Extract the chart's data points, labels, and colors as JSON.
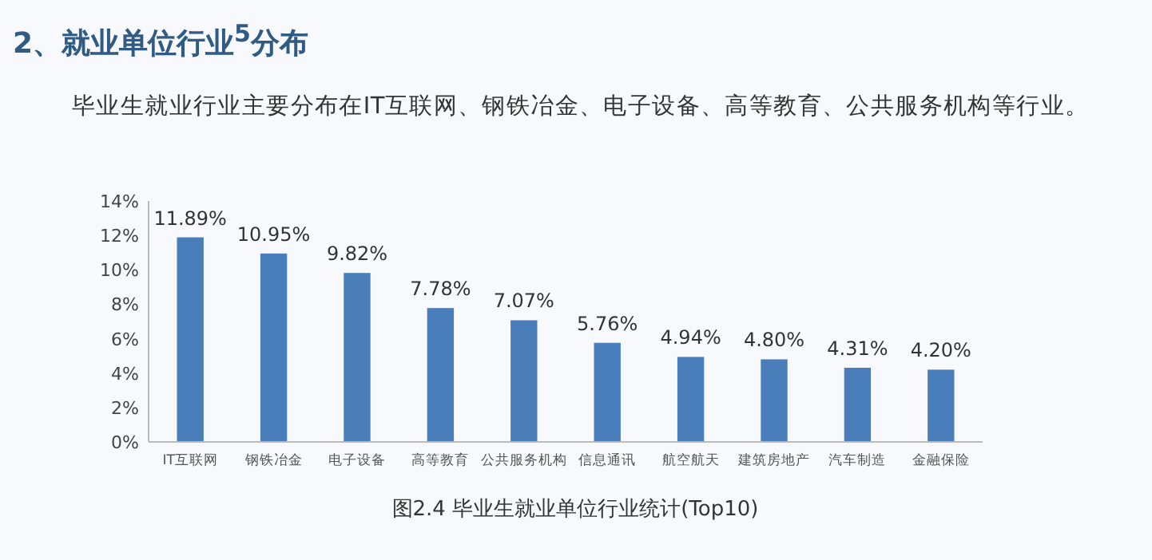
{
  "chart_data": {
    "type": "bar",
    "title": "2、就业单位行业$^{5}$分布",
    "subtitle": "毕业生就业行业主要分布在IT互联网、钢铁冶金、电子设备、高等教育、公共服务机构等行业。",
    "categories": [
      "IT互联网",
      "钢铁冶金",
      "电子设备",
      "高等教育",
      "公共服务机构",
      "信息通讯",
      "航空航天",
      "建筑房地产",
      "汽车制造",
      "金融保险"
    ],
    "values": [
      11.89,
      10.95,
      9.82,
      7.78,
      7.07,
      5.76,
      4.94,
      4.8,
      4.31,
      4.2
    ],
    "value_labels": [
      "11.89%",
      "10.95%",
      "9.82%",
      "7.78%",
      "7.07%",
      "5.76%",
      "4.94%",
      "4.80%",
      "4.31%",
      "4.20%"
    ],
    "color": "#4a7ebb",
    "ylim": [
      0,
      14
    ],
    "yticks": [
      {
        "value": 0,
        "label": "0%"
      },
      {
        "value": 2,
        "label": "2%"
      },
      {
        "value": 4,
        "label": "4%"
      },
      {
        "value": 6,
        "label": "6%"
      },
      {
        "value": 8,
        "label": "8%"
      },
      {
        "value": 10,
        "label": "10%"
      },
      {
        "value": 12,
        "label": "12%"
      },
      {
        "value": 14,
        "label": "14%"
      }
    ],
    "grid": false,
    "annotations": [
      "图2.4  毕业生就业单位行业统计(Top10)"
    ]
  }
}
